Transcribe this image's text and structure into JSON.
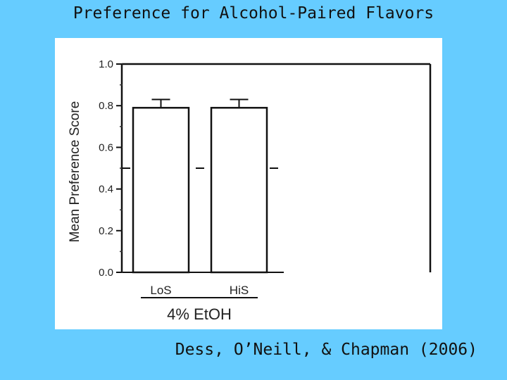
{
  "slide": {
    "title": "Preference for Alcohol-Paired Flavors",
    "citation": "Dess, O’Neill, & Chapman (2006)"
  },
  "chart_data": {
    "type": "bar",
    "categories": [
      "LoS",
      "HiS"
    ],
    "values": [
      0.79,
      0.79
    ],
    "error_upper": [
      0.83,
      0.83
    ],
    "reference_line": 0.5,
    "group_label": "4% EtOH",
    "ylabel": "Mean Preference Score",
    "xlabel": "",
    "ylim": [
      0,
      1
    ],
    "yticks": [
      "0.0",
      "0.2",
      "0.4",
      "0.6",
      "0.8",
      "1.0"
    ],
    "grid": false
  }
}
